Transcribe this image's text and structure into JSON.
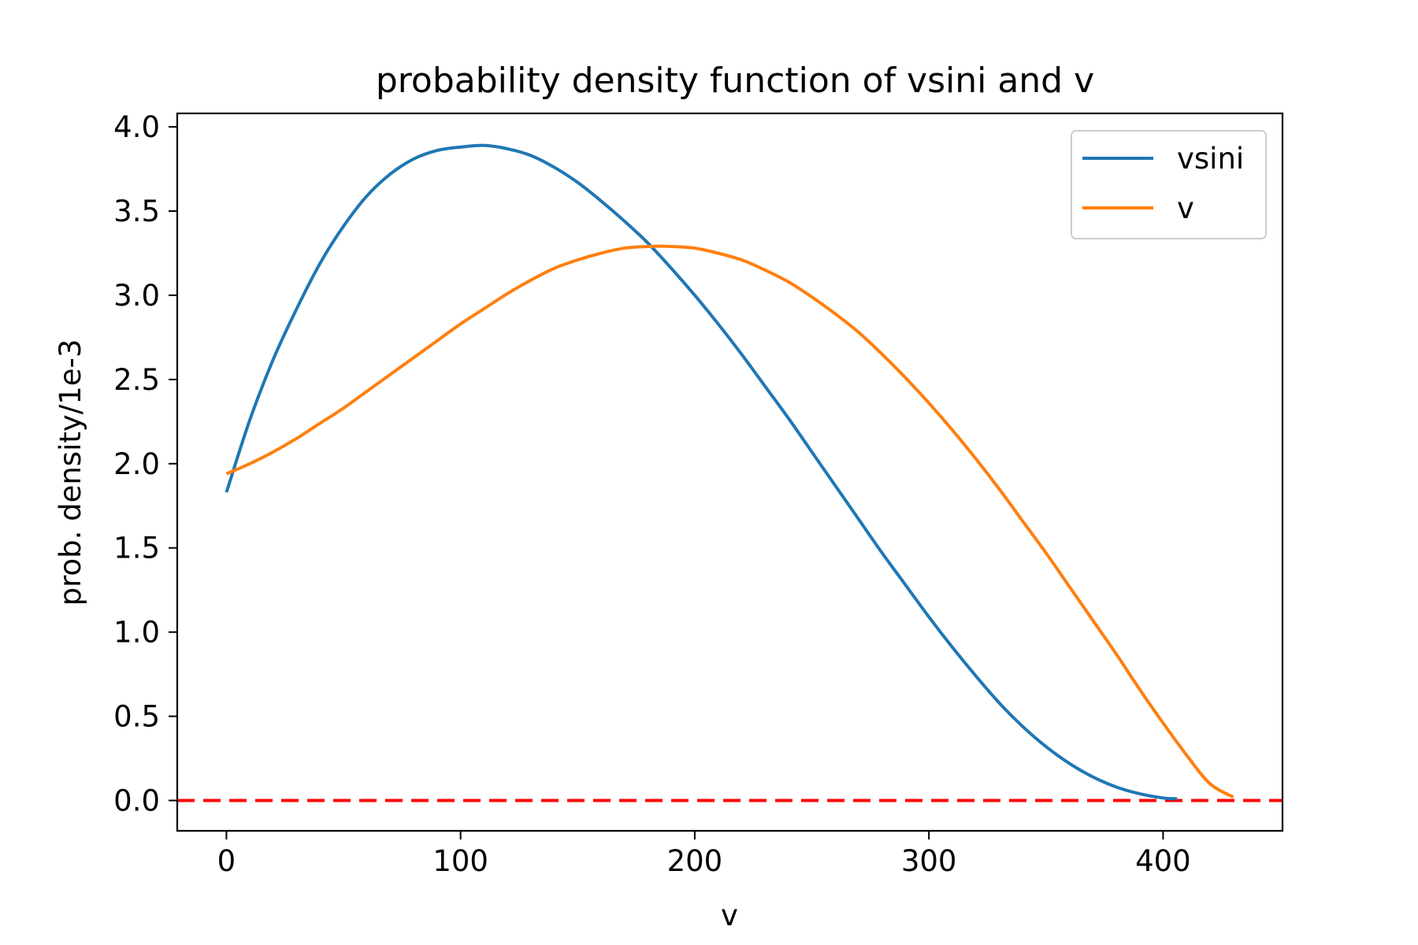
{
  "chart_data": {
    "type": "line",
    "title": "probability density function of vsini and v",
    "xlabel": "v",
    "ylabel": "prob. density/1e-3",
    "xlim": [
      -21,
      451
    ],
    "ylim": [
      -0.18,
      4.08
    ],
    "xticks": [
      0,
      100,
      200,
      300,
      400
    ],
    "xtick_labels": [
      "0",
      "100",
      "200",
      "300",
      "400"
    ],
    "yticks": [
      0.0,
      0.5,
      1.0,
      1.5,
      2.0,
      2.5,
      3.0,
      3.5,
      4.0
    ],
    "ytick_labels": [
      "0.0",
      "0.5",
      "1.0",
      "1.5",
      "2.0",
      "2.5",
      "3.0",
      "3.5",
      "4.0"
    ],
    "grid": false,
    "legend": {
      "position": "top-right"
    },
    "series": [
      {
        "name": "vsini",
        "color": "#1f77b4",
        "x": [
          0,
          10,
          20,
          30,
          40,
          50,
          60,
          70,
          80,
          90,
          100,
          110,
          120,
          130,
          140,
          150,
          160,
          170,
          180,
          190,
          200,
          210,
          220,
          230,
          240,
          250,
          260,
          270,
          280,
          290,
          300,
          310,
          320,
          330,
          340,
          350,
          360,
          370,
          380,
          390,
          400,
          406
        ],
        "y": [
          1.83,
          2.26,
          2.62,
          2.92,
          3.19,
          3.41,
          3.59,
          3.72,
          3.81,
          3.86,
          3.88,
          3.89,
          3.87,
          3.83,
          3.76,
          3.67,
          3.56,
          3.44,
          3.31,
          3.16,
          3.0,
          2.83,
          2.65,
          2.46,
          2.27,
          2.07,
          1.87,
          1.67,
          1.47,
          1.28,
          1.09,
          0.91,
          0.74,
          0.58,
          0.44,
          0.32,
          0.22,
          0.14,
          0.08,
          0.04,
          0.015,
          0.01
        ]
      },
      {
        "name": "v",
        "color": "#ff7f0e",
        "x": [
          0,
          10,
          20,
          30,
          40,
          50,
          60,
          70,
          80,
          90,
          100,
          110,
          120,
          130,
          140,
          150,
          160,
          170,
          180,
          190,
          200,
          210,
          220,
          230,
          240,
          250,
          260,
          270,
          280,
          290,
          300,
          310,
          320,
          330,
          340,
          350,
          360,
          370,
          380,
          390,
          400,
          410,
          420,
          430
        ],
        "y": [
          1.94,
          2.0,
          2.07,
          2.15,
          2.24,
          2.33,
          2.43,
          2.53,
          2.63,
          2.73,
          2.83,
          2.92,
          3.01,
          3.09,
          3.16,
          3.21,
          3.25,
          3.28,
          3.29,
          3.29,
          3.28,
          3.25,
          3.21,
          3.15,
          3.08,
          2.99,
          2.89,
          2.78,
          2.65,
          2.51,
          2.36,
          2.2,
          2.03,
          1.85,
          1.66,
          1.47,
          1.27,
          1.07,
          0.87,
          0.66,
          0.46,
          0.27,
          0.1,
          0.02
        ]
      }
    ],
    "reference_line": {
      "y": 0.0,
      "color": "#ff0000",
      "style": "dashed"
    }
  }
}
